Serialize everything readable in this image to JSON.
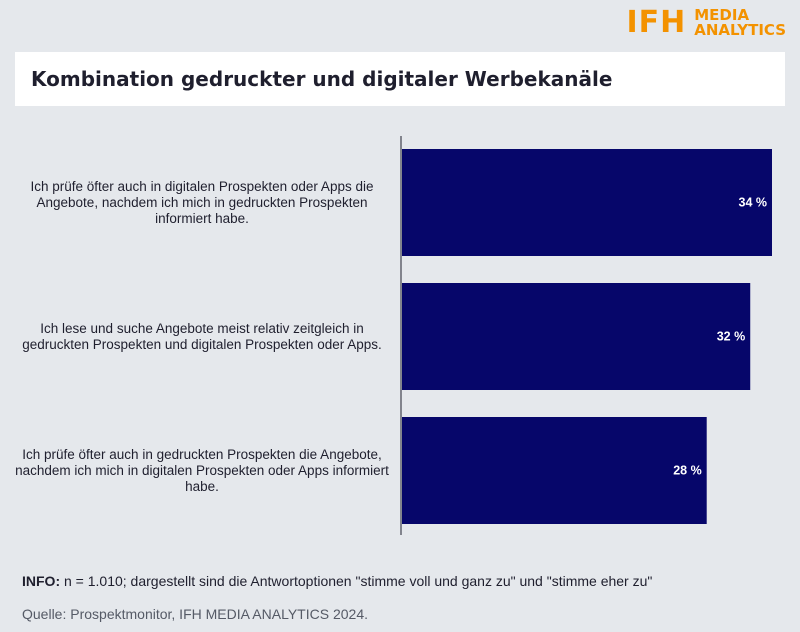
{
  "logo": {
    "mark": "IFH",
    "line1": "MEDIA",
    "line2": "ANALYTICS",
    "color": "#f39200"
  },
  "title": "Kombination gedruckter und digitaler Werbekanäle",
  "chart_data": {
    "type": "bar",
    "orientation": "horizontal",
    "categories": [
      "Ich prüfe öfter auch in digitalen Prospekten oder Apps die Angebote, nachdem ich mich in gedruckten Prospekten informiert habe.",
      "Ich lese und suche Angebote meist relativ zeitgleich in gedruckten Prospekten und digitalen Prospekten oder Apps.",
      "Ich prüfe öfter auch in gedruckten Prospekten die Angebote, nachdem ich mich in digitalen Prospekten oder Apps informiert habe."
    ],
    "values": [
      34,
      32,
      28
    ],
    "value_labels": [
      "34 %",
      "32 %",
      "28 %"
    ],
    "xlim": [
      0,
      34
    ],
    "bar_color": "#06066a",
    "grid": false,
    "legend": "none"
  },
  "footer": {
    "info_label": "INFO:",
    "info_text": "n = 1.010; dargestellt sind die Antwortoptionen \"stimme voll und ganz zu\" und \"stimme eher zu\"",
    "source": "Quelle: Prospektmonitor, IFH MEDIA ANALYTICS 2024."
  }
}
